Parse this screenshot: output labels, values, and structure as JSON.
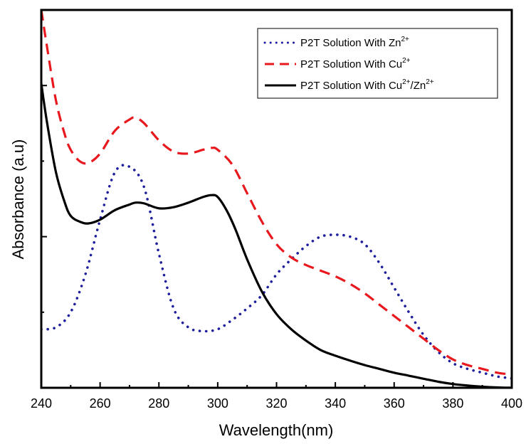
{
  "chart_data": {
    "type": "line",
    "title": "",
    "xlabel": "Wavelength(nm)",
    "ylabel": "Absorbance (a.u)",
    "xlim": [
      240,
      400
    ],
    "ylim": [
      0,
      1
    ],
    "x_ticks": [
      240,
      260,
      280,
      300,
      320,
      340,
      360,
      380,
      400
    ],
    "y_ticks_labeled": false,
    "grid": false,
    "legend_position": "top-right",
    "series": [
      {
        "name": "P2T Solution With Zn2+",
        "legend": {
          "base": "P2T Solution With Zn",
          "sup": "2+"
        },
        "color": "#1f1f9e",
        "style": "dotted",
        "x": [
          240,
          245,
          250,
          255,
          260,
          265,
          270,
          275,
          280,
          285,
          290,
          295,
          300,
          305,
          310,
          315,
          320,
          325,
          330,
          335,
          340,
          345,
          350,
          355,
          360,
          365,
          370,
          375,
          380,
          385,
          390,
          395,
          400
        ],
        "y": [
          0.155,
          0.16,
          0.2,
          0.3,
          0.445,
          0.57,
          0.585,
          0.53,
          0.355,
          0.21,
          0.16,
          0.15,
          0.155,
          0.18,
          0.21,
          0.245,
          0.3,
          0.34,
          0.375,
          0.4,
          0.405,
          0.4,
          0.38,
          0.33,
          0.265,
          0.2,
          0.14,
          0.095,
          0.065,
          0.05,
          0.04,
          0.03,
          0.025
        ]
      },
      {
        "name": "P2T Solution With Cu2+",
        "legend": {
          "base": "P2T Solution With Cu",
          "sup": "2+"
        },
        "color": "#e8191e",
        "style": "dashed",
        "x": [
          240,
          242,
          245,
          248,
          250,
          253,
          256,
          260,
          265,
          270,
          272,
          275,
          280,
          285,
          290,
          295,
          298,
          300,
          305,
          310,
          315,
          320,
          325,
          330,
          335,
          340,
          345,
          350,
          355,
          360,
          365,
          370,
          375,
          380,
          385,
          390,
          395,
          400
        ],
        "y": [
          1.0,
          0.9,
          0.76,
          0.67,
          0.63,
          0.6,
          0.595,
          0.62,
          0.68,
          0.71,
          0.715,
          0.7,
          0.655,
          0.625,
          0.62,
          0.63,
          0.635,
          0.63,
          0.59,
          0.515,
          0.44,
          0.38,
          0.345,
          0.325,
          0.31,
          0.295,
          0.275,
          0.25,
          0.22,
          0.19,
          0.16,
          0.13,
          0.1,
          0.075,
          0.06,
          0.05,
          0.04,
          0.035
        ]
      },
      {
        "name": "P2T Solution With Cu2+/Zn2+",
        "legend": {
          "base": "P2T Solution With Cu",
          "sup": "2+",
          "mid": "/Zn",
          "sup2": "2+"
        },
        "color": "#000000",
        "style": "solid",
        "x": [
          240,
          242,
          245,
          248,
          250,
          253,
          256,
          260,
          265,
          270,
          272,
          275,
          280,
          285,
          290,
          295,
          298,
          300,
          303,
          306,
          310,
          315,
          320,
          325,
          330,
          335,
          340,
          345,
          350,
          355,
          360,
          365,
          370,
          375,
          380,
          385,
          390,
          395,
          400
        ],
        "y": [
          0.805,
          0.7,
          0.57,
          0.49,
          0.455,
          0.44,
          0.435,
          0.445,
          0.47,
          0.485,
          0.49,
          0.488,
          0.475,
          0.478,
          0.49,
          0.505,
          0.51,
          0.505,
          0.47,
          0.42,
          0.34,
          0.255,
          0.195,
          0.155,
          0.125,
          0.1,
          0.085,
          0.072,
          0.06,
          0.05,
          0.04,
          0.032,
          0.024,
          0.016,
          0.01,
          0.006,
          0.003,
          0.001,
          0.0
        ]
      }
    ]
  }
}
